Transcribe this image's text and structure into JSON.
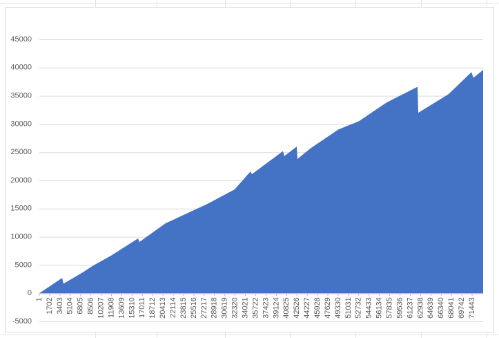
{
  "chart_data": {
    "type": "area",
    "x": [
      1,
      3760,
      3988,
      7178,
      8887,
      11735,
      16293,
      16520,
      20850,
      27686,
      32243,
      34864,
      35092,
      40219,
      40447,
      42497,
      42611,
      44776,
      49333,
      52752,
      57309,
      62436,
      62550,
      67563,
      71323,
      71665,
      73260
    ],
    "values": [
      0,
      2700,
      1700,
      3700,
      4900,
      6600,
      9700,
      9100,
      12400,
      15800,
      18400,
      21600,
      21100,
      25200,
      24300,
      26000,
      23800,
      25700,
      29000,
      30500,
      33800,
      36600,
      32000,
      35300,
      39200,
      38200,
      39600
    ],
    "color": "#4472c4",
    "xlim": [
      1,
      73260
    ],
    "xticks": [
      1,
      1702,
      3403,
      5104,
      6805,
      8506,
      10207,
      11908,
      13609,
      15310,
      17011,
      18712,
      20413,
      22114,
      23815,
      25516,
      27217,
      28918,
      30619,
      32320,
      34021,
      35722,
      37423,
      39124,
      40825,
      42526,
      44227,
      45928,
      47629,
      49330,
      51031,
      52732,
      54433,
      56134,
      57835,
      59536,
      61237,
      62938,
      64639,
      66340,
      68041,
      69742,
      71443
    ],
    "ylim": [
      -5000,
      45000
    ],
    "yticks": [
      -5000,
      0,
      5000,
      10000,
      15000,
      20000,
      25000,
      30000,
      35000,
      40000,
      45000
    ],
    "grid": true
  }
}
